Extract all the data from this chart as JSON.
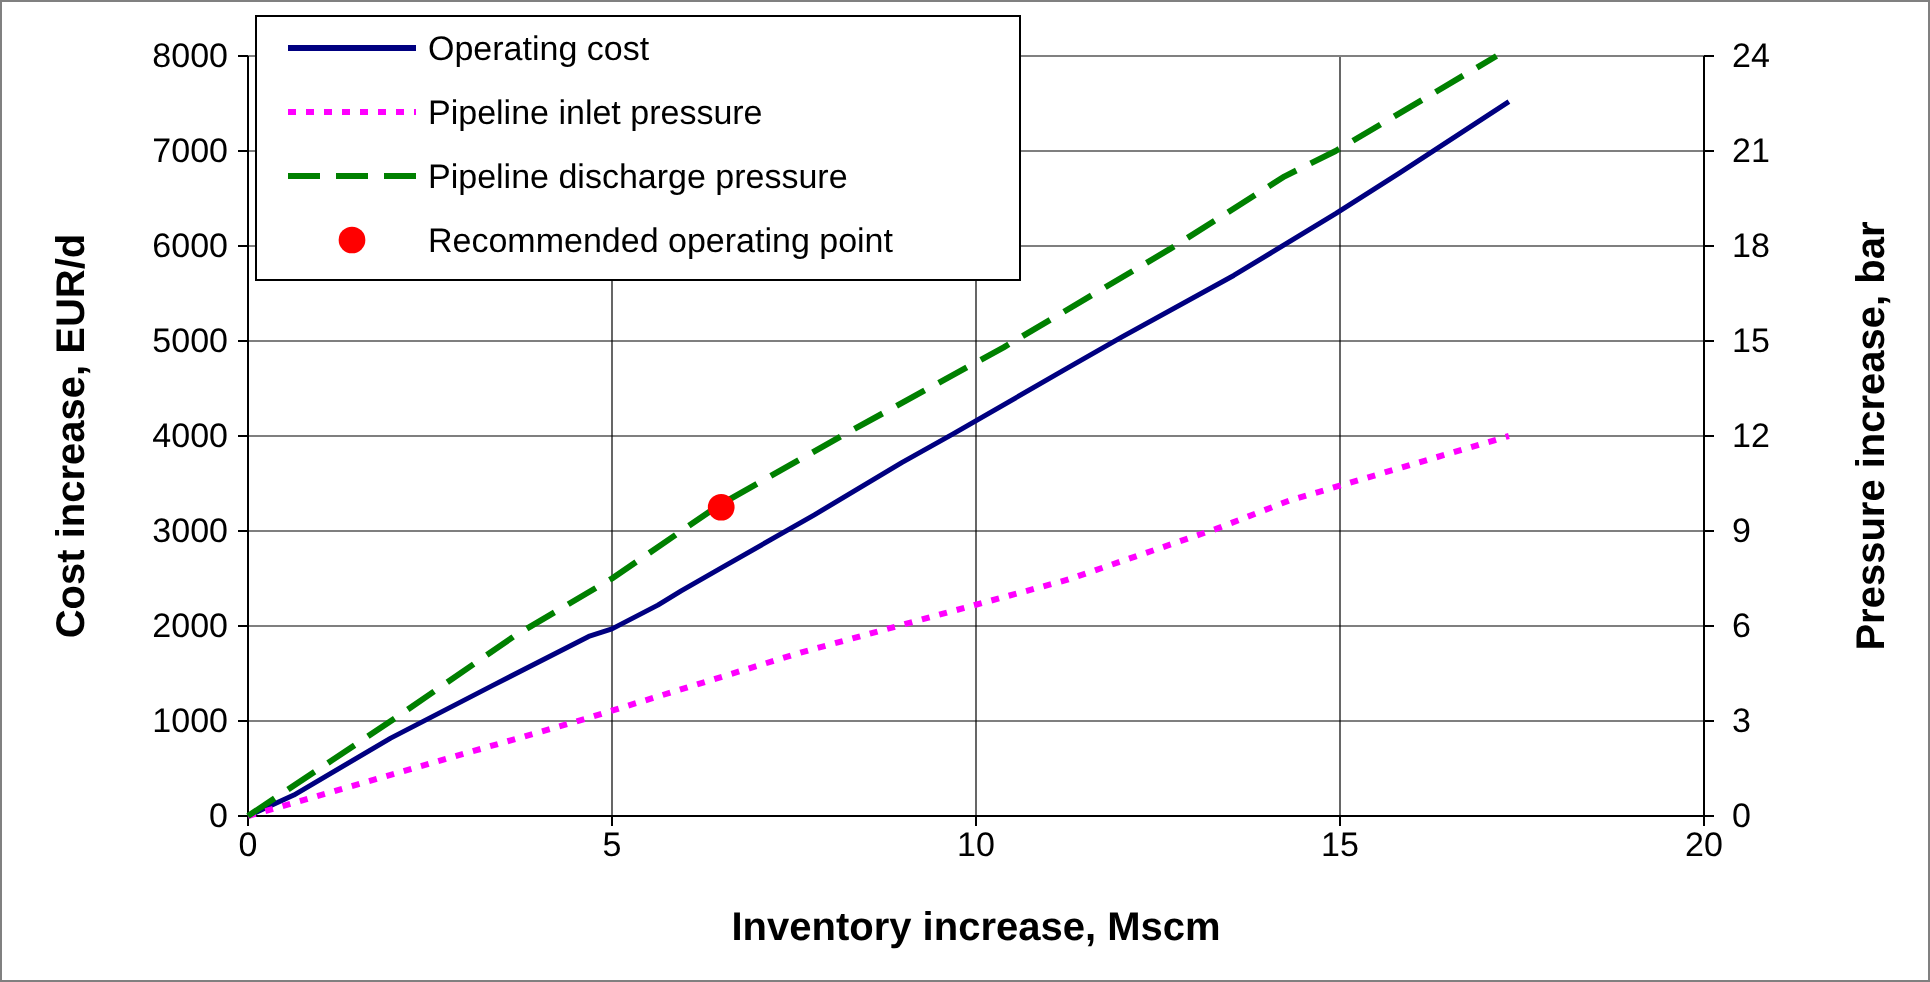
{
  "chart_data": {
    "type": "line",
    "xlabel": "Inventory increase, Mscm",
    "ylabel": "Cost increase, EUR/d",
    "y2label": "Pressure increase, bar",
    "xlim": [
      0,
      20
    ],
    "xticks": [
      0,
      5,
      10,
      15,
      20
    ],
    "ylim": [
      0,
      8000
    ],
    "yticks": [
      0,
      1000,
      2000,
      3000,
      4000,
      5000,
      6000,
      7000,
      8000
    ],
    "y2lim": [
      0,
      24
    ],
    "y2ticks": [
      0,
      3,
      6,
      9,
      12,
      15,
      18,
      21,
      24
    ],
    "grid": true,
    "legend": "top left",
    "series": [
      {
        "name": "Operating cost",
        "color": "#000080",
        "line_style": "solid",
        "x": [
          0,
          0.63,
          1.96,
          3.35,
          4.68,
          5,
          5.63,
          5.95,
          6.52,
          7.78,
          8.98,
          9.68,
          11.2,
          12,
          13.54,
          14.94,
          15.82,
          17.32
        ],
        "values": [
          0,
          220,
          820,
          1370,
          1890,
          1970,
          2220,
          2370,
          2620,
          3170,
          3720,
          4020,
          4690,
          5040,
          5690,
          6340,
          6770,
          7520
        ]
      },
      {
        "name": "Pipeline inlet pressure",
        "color": "#ff00ff",
        "line_style": "dotted",
        "axis": "y2",
        "x": [
          0,
          4.62,
          7.59,
          11.27,
          13.29,
          14.3,
          17.32
        ],
        "values": [
          0,
          3.06,
          5.16,
          7.47,
          9.06,
          9.96,
          12
        ]
      },
      {
        "name": "Pipeline discharge pressure",
        "color": "#008000",
        "line_style": "dashed",
        "axis": "y2",
        "x": [
          0,
          2.03,
          3.67,
          5,
          6.46,
          8.23,
          10.38,
          12.66,
          14.24,
          14.94,
          17.15
        ],
        "values": [
          0,
          3.1,
          5.7,
          7.5,
          9.8,
          12.1,
          14.8,
          17.9,
          20.2,
          21,
          24
        ]
      },
      {
        "name": "Recommended operating point",
        "type": "scatter",
        "marker": "circle",
        "color": "#ff0000",
        "axis": "y2",
        "x": [
          6.5
        ],
        "values": [
          9.75
        ]
      }
    ]
  }
}
